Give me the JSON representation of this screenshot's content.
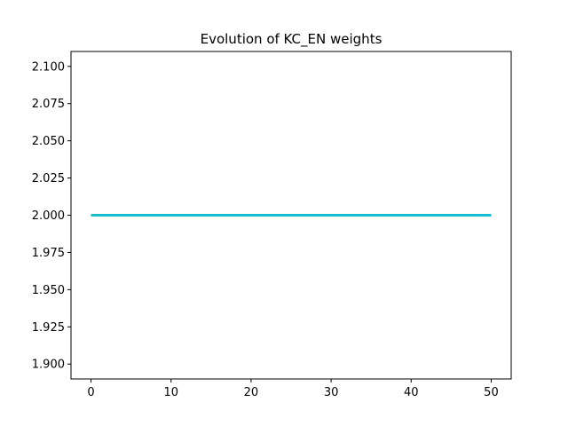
{
  "chart_data": {
    "type": "line",
    "title": "Evolution of KC_EN weights",
    "xlabel": "",
    "ylabel": "",
    "xlim": [
      -2.5,
      52.5
    ],
    "ylim": [
      1.89,
      2.11
    ],
    "x_ticks": [
      0,
      10,
      20,
      30,
      40,
      50
    ],
    "x_tick_labels": [
      "0",
      "10",
      "20",
      "30",
      "40",
      "50"
    ],
    "y_ticks": [
      1.9,
      1.925,
      1.95,
      1.975,
      2.0,
      2.025,
      2.05,
      2.075,
      2.1
    ],
    "y_tick_labels": [
      "1.900",
      "1.925",
      "1.950",
      "1.975",
      "2.000",
      "2.025",
      "2.050",
      "2.075",
      "2.100"
    ],
    "grid": false,
    "legend": "none",
    "series": [
      {
        "x": [
          0,
          50
        ],
        "y": [
          2.0,
          2.0
        ],
        "color": "#1f77b4"
      },
      {
        "x": [
          0,
          50
        ],
        "y": [
          2.0,
          2.0
        ],
        "color": "#ff7f0e"
      },
      {
        "x": [
          0,
          50
        ],
        "y": [
          2.0,
          2.0
        ],
        "color": "#2ca02c"
      },
      {
        "x": [
          0,
          50
        ],
        "y": [
          2.0,
          2.0
        ],
        "color": "#d62728"
      },
      {
        "x": [
          0,
          50
        ],
        "y": [
          2.0,
          2.0
        ],
        "color": "#9467bd"
      },
      {
        "x": [
          0,
          50
        ],
        "y": [
          2.0,
          2.0
        ],
        "color": "#8c564b"
      },
      {
        "x": [
          0,
          50
        ],
        "y": [
          2.0,
          2.0
        ],
        "color": "#e377c2"
      },
      {
        "x": [
          0,
          50
        ],
        "y": [
          2.0,
          2.0
        ],
        "color": "#7f7f7f"
      },
      {
        "x": [
          0,
          50
        ],
        "y": [
          2.0,
          2.0
        ],
        "color": "#bcbd22"
      },
      {
        "x": [
          0,
          50
        ],
        "y": [
          2.0,
          2.0
        ],
        "color": "#17becf"
      }
    ]
  }
}
